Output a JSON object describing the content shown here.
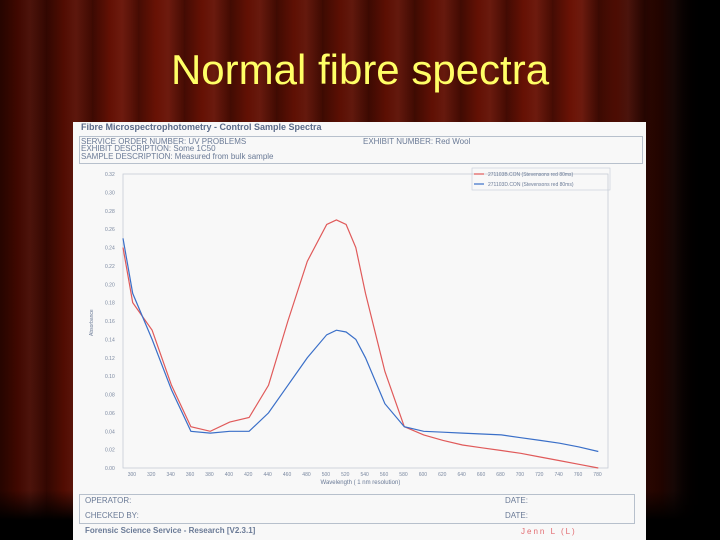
{
  "slide": {
    "title": "Normal fibre spectra"
  },
  "document": {
    "heading": "Fibre Microspectrophotometry - Control Sample Spectra",
    "service_order": "SERVICE ORDER NUMBER: UV PROBLEMS",
    "exhibit_number": "EXHIBIT NUMBER: Red Wool",
    "exhibit_description": "EXHIBIT DESCRIPTION: Some 1C50",
    "sample_description": "SAMPLE DESCRIPTION: Measured from bulk sample",
    "operator_label": "OPERATOR:",
    "checked_label": "CHECKED BY:",
    "date_label_1": "DATE:",
    "date_label_2": "DATE:",
    "software": "Forensic Science Service - Research [V2.3.1]",
    "signature": "Jenn L (L)"
  },
  "chart_data": {
    "type": "line",
    "xlabel": "Wavelength ( 1 nm resolution)",
    "ylabel": "Absorbance",
    "xlim": [
      290,
      790
    ],
    "ylim": [
      0.0,
      0.32
    ],
    "x_ticks": [
      "300",
      "320",
      "340",
      "360",
      "380",
      "400",
      "420",
      "440",
      "460",
      "480",
      "500",
      "520",
      "540",
      "560",
      "580",
      "600",
      "620",
      "640",
      "660",
      "680",
      "700",
      "720",
      "740",
      "760",
      "780"
    ],
    "y_ticks": [
      "0.00",
      "0.02",
      "0.04",
      "0.06",
      "0.08",
      "0.10",
      "0.12",
      "0.14",
      "0.16",
      "0.18",
      "0.20",
      "0.22",
      "0.24",
      "0.26",
      "0.28",
      "0.30",
      "0.32"
    ],
    "colors": {
      "series1": "#e05a5a",
      "series2": "#3a6fc8"
    },
    "legend": [
      "271103B.CON (Stevensons red 80ms)",
      "271103D.CON (Stevensons red 80ms)"
    ],
    "series": [
      {
        "name": "271103B.CON (Stevensons red 80ms)",
        "x": [
          290,
          300,
          320,
          340,
          360,
          380,
          400,
          420,
          440,
          460,
          480,
          500,
          510,
          520,
          530,
          540,
          560,
          580,
          600,
          620,
          640,
          660,
          680,
          700,
          720,
          740,
          760,
          780
        ],
        "y": [
          0.24,
          0.18,
          0.15,
          0.09,
          0.045,
          0.04,
          0.05,
          0.055,
          0.09,
          0.16,
          0.225,
          0.265,
          0.27,
          0.265,
          0.24,
          0.19,
          0.105,
          0.045,
          0.036,
          0.03,
          0.025,
          0.022,
          0.019,
          0.016,
          0.012,
          0.008,
          0.004,
          0.0
        ]
      },
      {
        "name": "271103D.CON (Stevensons red 80ms)",
        "x": [
          290,
          300,
          320,
          340,
          360,
          380,
          400,
          420,
          440,
          460,
          480,
          500,
          510,
          520,
          530,
          540,
          560,
          580,
          600,
          620,
          640,
          660,
          680,
          700,
          720,
          740,
          760,
          780
        ],
        "y": [
          0.25,
          0.19,
          0.14,
          0.085,
          0.04,
          0.038,
          0.04,
          0.04,
          0.06,
          0.09,
          0.12,
          0.145,
          0.15,
          0.148,
          0.14,
          0.12,
          0.07,
          0.045,
          0.04,
          0.039,
          0.038,
          0.037,
          0.036,
          0.033,
          0.03,
          0.027,
          0.023,
          0.018
        ]
      }
    ]
  }
}
